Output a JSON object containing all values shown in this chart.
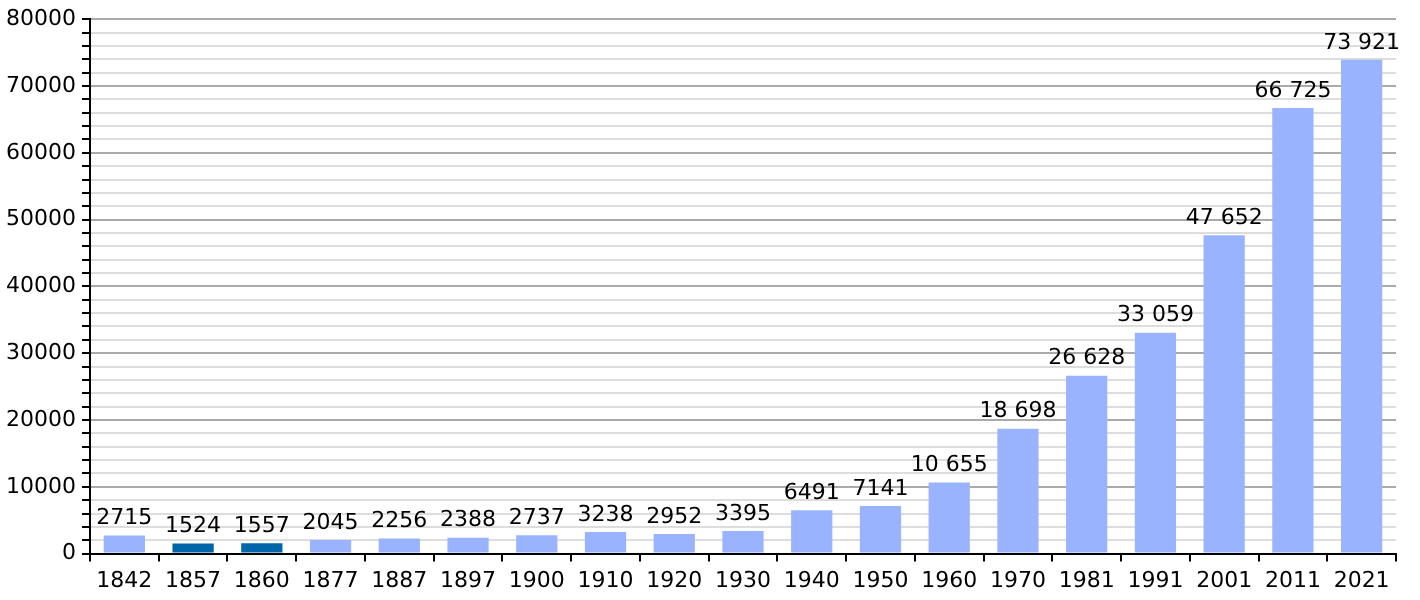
{
  "chart_data": {
    "type": "bar",
    "categories": [
      "1842",
      "1857",
      "1860",
      "1877",
      "1887",
      "1897",
      "1900",
      "1910",
      "1920",
      "1930",
      "1940",
      "1950",
      "1960",
      "1970",
      "1981",
      "1991",
      "2001",
      "2011",
      "2021"
    ],
    "values": [
      2715,
      1524,
      1557,
      2045,
      2256,
      2388,
      2737,
      3238,
      2952,
      3395,
      6491,
      7141,
      10655,
      18698,
      26628,
      33059,
      47652,
      66725,
      73921
    ],
    "colors": [
      "#99b3ff",
      "#0066aa",
      "#0066aa",
      "#99b3ff",
      "#99b3ff",
      "#99b3ff",
      "#99b3ff",
      "#99b3ff",
      "#99b3ff",
      "#99b3ff",
      "#99b3ff",
      "#99b3ff",
      "#99b3ff",
      "#99b3ff",
      "#99b3ff",
      "#99b3ff",
      "#99b3ff",
      "#99b3ff",
      "#99b3ff"
    ],
    "value_labels": [
      "2715",
      "1524",
      "1557",
      "2045",
      "2256",
      "2388",
      "2737",
      "3238",
      "2952",
      "3395",
      "6491",
      "7141",
      "10 655",
      "18 698",
      "26 628",
      "33 059",
      "47 652",
      "66 725",
      "73 921"
    ],
    "ylim": [
      0,
      80000
    ],
    "yticks": [
      0,
      {
        "value": 2000,
        "label": null
      },
      {
        "value": 4000,
        "label": null
      },
      {
        "value": 6000,
        "label": null
      },
      {
        "value": 8000,
        "label": null
      },
      10000,
      {
        "value": 12000,
        "label": null
      },
      {
        "value": 14000,
        "label": null
      },
      {
        "value": 16000,
        "label": null
      },
      {
        "value": 18000,
        "label": null
      },
      20000,
      {
        "value": 22000,
        "label": null
      },
      {
        "value": 24000,
        "label": null
      },
      {
        "value": 26000,
        "label": null
      },
      {
        "value": 28000,
        "label": null
      },
      30000,
      {
        "value": 32000,
        "label": null
      },
      {
        "value": 34000,
        "label": null
      },
      {
        "value": 36000,
        "label": null
      },
      {
        "value": 38000,
        "label": null
      },
      40000,
      {
        "value": 42000,
        "label": null
      },
      {
        "value": 44000,
        "label": null
      },
      {
        "value": 46000,
        "label": null
      },
      {
        "value": 48000,
        "label": null
      },
      50000,
      {
        "value": 52000,
        "label": null
      },
      {
        "value": 54000,
        "label": null
      },
      {
        "value": 56000,
        "label": null
      },
      {
        "value": 58000,
        "label": null
      },
      60000,
      {
        "value": 62000,
        "label": null
      },
      {
        "value": 64000,
        "label": null
      },
      {
        "value": 66000,
        "label": null
      },
      {
        "value": 68000,
        "label": null
      },
      70000,
      {
        "value": 72000,
        "label": null
      },
      {
        "value": 74000,
        "label": null
      },
      {
        "value": 76000,
        "label": null
      },
      {
        "value": 78000,
        "label": null
      },
      80000
    ],
    "grid": true
  }
}
